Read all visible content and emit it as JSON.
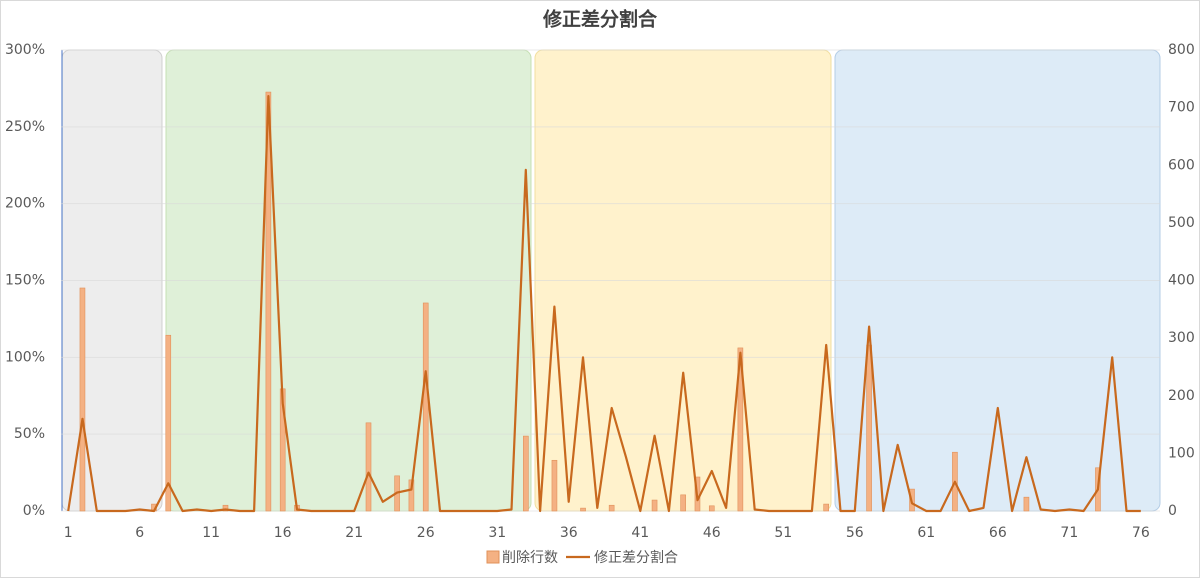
{
  "chart_data": {
    "type": "bar-line",
    "title": "修正差分割合",
    "categories": [
      "1",
      null,
      null,
      null,
      null,
      "6",
      null,
      null,
      null,
      null,
      "11",
      null,
      null,
      null,
      null,
      "16",
      null,
      null,
      null,
      null,
      "21",
      null,
      null,
      null,
      null,
      "26",
      null,
      null,
      null,
      null,
      "31",
      null,
      null,
      null,
      null,
      "36",
      null,
      null,
      null,
      null,
      "41",
      null,
      null,
      null,
      null,
      "46",
      null,
      null,
      null,
      null,
      "51",
      null,
      null,
      null,
      null,
      "56",
      null,
      null,
      null,
      null,
      "61",
      null,
      null,
      null,
      null,
      "66",
      null,
      null,
      null,
      null,
      "71",
      null,
      null,
      null,
      null,
      "76"
    ],
    "series": [
      {
        "name": "削除行数",
        "type": "bar",
        "axis": "y2",
        "color": "#f4b183",
        "values": [
          0,
          387,
          0,
          0,
          0,
          0,
          12,
          305,
          0,
          0,
          0,
          10,
          0,
          0,
          727,
          212,
          10,
          0,
          0,
          0,
          0,
          153,
          0,
          61,
          54,
          361,
          0,
          0,
          0,
          0,
          0,
          0,
          130,
          0,
          88,
          0,
          5,
          0,
          10,
          0,
          0,
          19,
          0,
          28,
          59,
          9,
          0,
          283,
          0,
          0,
          0,
          0,
          0,
          12,
          0,
          0,
          288,
          0,
          0,
          38,
          0,
          0,
          102,
          0,
          0,
          0,
          0,
          24,
          0,
          0,
          0,
          0,
          75,
          0,
          0,
          0
        ]
      },
      {
        "name": "修正差分割合",
        "type": "line",
        "axis": "y",
        "color": "#c8691e",
        "values": [
          0,
          60,
          0,
          0,
          0,
          1,
          0,
          18,
          0,
          1,
          0,
          1,
          0,
          0,
          270,
          70,
          1,
          0,
          0,
          0,
          0,
          25,
          6,
          12,
          14,
          91,
          0,
          0,
          0,
          0,
          0,
          1,
          222,
          0,
          133,
          6,
          100,
          2,
          67,
          35,
          0,
          49,
          0,
          90,
          7,
          26,
          2,
          103,
          1,
          0,
          0,
          0,
          0,
          108,
          0,
          0,
          120,
          0,
          43,
          5,
          0,
          0,
          19,
          0,
          2,
          67,
          0,
          35,
          1,
          0,
          1,
          0,
          14,
          100,
          0,
          0
        ]
      }
    ],
    "ylim": [
      0,
      300
    ],
    "yticks": [
      {
        "value": 0,
        "label": "0%"
      },
      {
        "value": 50,
        "label": "50%"
      },
      {
        "value": 100,
        "label": "100%"
      },
      {
        "value": 150,
        "label": "150%"
      },
      {
        "value": 200,
        "label": "200%"
      },
      {
        "value": 250,
        "label": "250%"
      },
      {
        "value": 300,
        "label": "300%"
      }
    ],
    "y2lim": [
      0,
      800
    ],
    "y2ticks": [
      0,
      100,
      200,
      300,
      400,
      500,
      600,
      700,
      800
    ],
    "grid": true,
    "legend": "bottom"
  }
}
